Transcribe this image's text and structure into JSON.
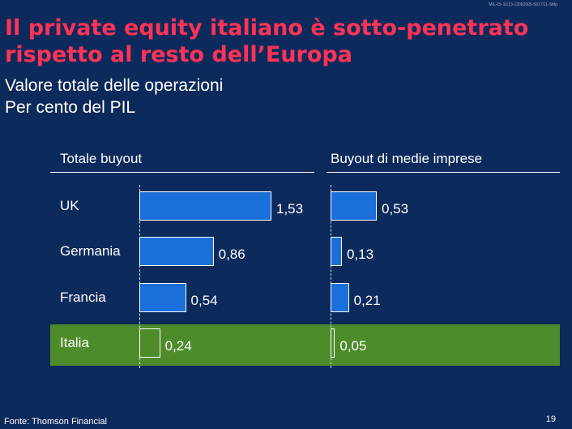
{
  "ref_code": "MIL-15-11/13-13052005-5917/11-SMp",
  "title_line1": "Il private equity italiano è sotto-penetrato",
  "title_line2": "rispetto al resto dell’Europa",
  "subtitle_line1": "Valore totale delle operazioni",
  "subtitle_line2": "Per cento del PIL",
  "source": "Fonte: Thomson Financial",
  "page_number": "19",
  "colors": {
    "background": "#0d2a5c",
    "title": "#ff3355",
    "bar": "#1a6fdb",
    "highlight_bar": "#ffffff",
    "highlight_band": "#4e8b2b"
  },
  "chart_data": [
    {
      "type": "bar",
      "orientation": "horizontal",
      "title": "Totale buyout",
      "categories": [
        "UK",
        "Germania",
        "Francia",
        "Italia"
      ],
      "values": [
        1.53,
        0.86,
        0.54,
        0.24
      ],
      "value_labels": [
        "1,53",
        "0,86",
        "0,54",
        "0,24"
      ],
      "highlight": "Italia",
      "xlim": [
        0,
        1.53
      ]
    },
    {
      "type": "bar",
      "orientation": "horizontal",
      "title": "Buyout di medie imprese",
      "categories": [
        "UK",
        "Germania",
        "Francia",
        "Italia"
      ],
      "values": [
        0.53,
        0.13,
        0.21,
        0.05
      ],
      "value_labels": [
        "0,53",
        "0,13",
        "0,21",
        "0,05"
      ],
      "highlight": "Italia",
      "xlim": [
        0,
        0.53
      ]
    }
  ]
}
